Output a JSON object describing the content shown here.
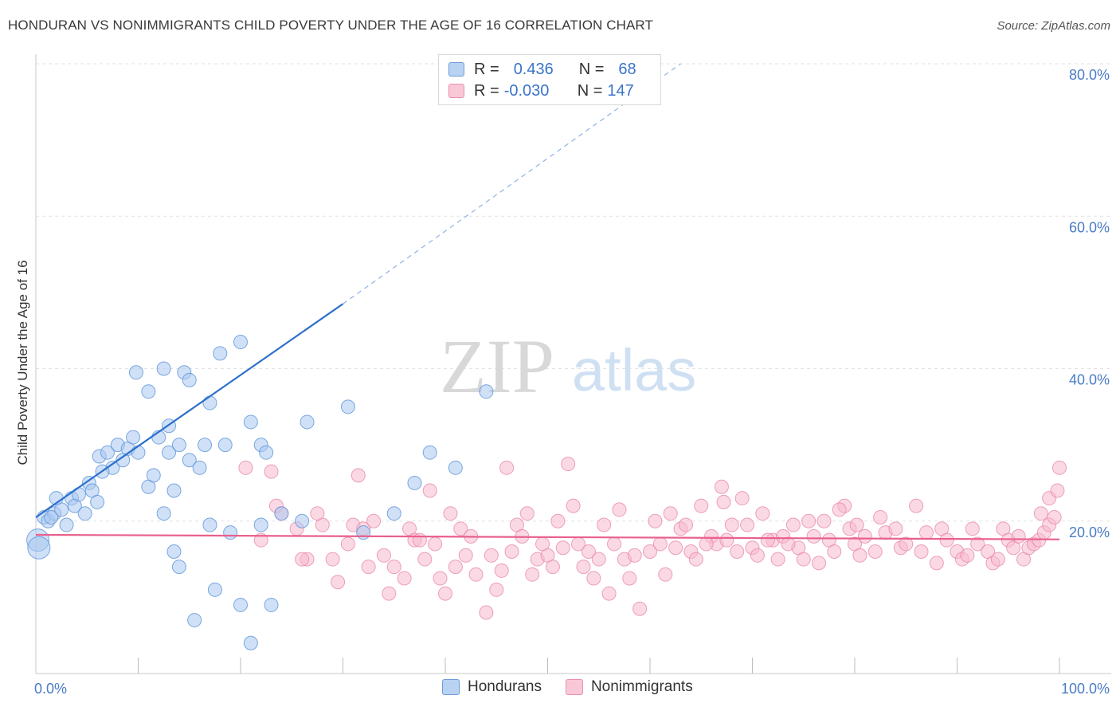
{
  "title": "HONDURAN VS NONIMMIGRANTS CHILD POVERTY UNDER THE AGE OF 16 CORRELATION CHART",
  "source": "Source: ZipAtlas.com",
  "watermark": {
    "zip": "ZIP",
    "atlas": "atlas"
  },
  "legend": {
    "series1": {
      "r_label": "R =",
      "r_value": "0.436",
      "n_label": "N =",
      "n_value": "68"
    },
    "series2": {
      "r_label": "R =",
      "r_value": "-0.030",
      "n_label": "N =",
      "n_value": "147"
    }
  },
  "colors": {
    "hondurans_fill": "#a9c8f0",
    "hondurans_stroke": "#5d93d9",
    "hondurans_line": "#2c6fcc",
    "nonimm_fill": "#f7b9cd",
    "nonimm_stroke": "#e889a9",
    "nonimm_line": "#e8608d",
    "tick_text": "#4a7cc7",
    "grid": "#e2e2e2"
  },
  "chart_data": {
    "type": "scatter",
    "ylabel": "Child Poverty Under the Age of 16",
    "xlim": [
      0,
      100
    ],
    "ylim": [
      0,
      80
    ],
    "x_tick_labels": [
      {
        "value": 0,
        "label": "0.0%"
      },
      {
        "value": 100,
        "label": "100.0%"
      }
    ],
    "y_tick_labels": [
      {
        "value": 20,
        "label": "20.0%"
      },
      {
        "value": 40,
        "label": "40.0%"
      },
      {
        "value": 60,
        "label": "60.0%"
      },
      {
        "value": 80,
        "label": "80.0%"
      }
    ],
    "grid": true,
    "legend_position": "top-center",
    "series": [
      {
        "name": "Hondurans",
        "trend": {
          "x": [
            0,
            30
          ],
          "y": [
            20.5,
            48.5
          ],
          "dashed_to": [
            63,
            80
          ]
        },
        "points": [
          [
            0.2,
            17.5
          ],
          [
            0.3,
            16.5
          ],
          [
            0.8,
            20.5
          ],
          [
            1.2,
            20
          ],
          [
            1.8,
            21
          ],
          [
            1.5,
            20.5
          ],
          [
            2.5,
            21.5
          ],
          [
            2,
            23
          ],
          [
            3,
            19.5
          ],
          [
            3.5,
            23
          ],
          [
            3.8,
            22
          ],
          [
            4.2,
            23.5
          ],
          [
            4.8,
            21
          ],
          [
            5.2,
            25
          ],
          [
            5.5,
            24
          ],
          [
            6,
            22.5
          ],
          [
            6.2,
            28.5
          ],
          [
            7,
            29
          ],
          [
            7.5,
            27
          ],
          [
            8,
            30
          ],
          [
            8.5,
            28
          ],
          [
            9,
            29.5
          ],
          [
            6.5,
            26.5
          ],
          [
            9.5,
            31
          ],
          [
            10,
            29
          ],
          [
            11,
            24.5
          ],
          [
            11.5,
            26
          ],
          [
            12,
            31
          ],
          [
            13,
            29
          ],
          [
            13.5,
            24
          ],
          [
            14,
            30
          ],
          [
            15,
            28
          ],
          [
            16,
            27
          ],
          [
            16.5,
            30
          ],
          [
            18.5,
            30
          ],
          [
            13,
            32.5
          ],
          [
            12.5,
            21
          ],
          [
            9.8,
            39.5
          ],
          [
            11,
            37
          ],
          [
            12.5,
            40
          ],
          [
            14.5,
            39.5
          ],
          [
            15,
            38.5
          ],
          [
            17,
            35.5
          ],
          [
            18,
            42
          ],
          [
            20,
            43.5
          ],
          [
            22,
            30
          ],
          [
            22.5,
            29
          ],
          [
            24,
            21
          ],
          [
            21,
            33
          ],
          [
            22,
            19.5
          ],
          [
            13.5,
            16
          ],
          [
            14,
            14
          ],
          [
            17,
            19.5
          ],
          [
            15.5,
            7
          ],
          [
            17.5,
            11
          ],
          [
            19,
            18.5
          ],
          [
            20,
            9
          ],
          [
            21,
            4
          ],
          [
            23,
            9
          ],
          [
            26,
            20
          ],
          [
            26.5,
            33
          ],
          [
            30.5,
            35
          ],
          [
            32,
            18.5
          ],
          [
            35,
            21
          ],
          [
            37,
            25
          ],
          [
            38.5,
            29
          ],
          [
            41,
            27
          ],
          [
            44,
            37
          ]
        ]
      },
      {
        "name": "Nonimmigrants",
        "trend": {
          "x": [
            0,
            100
          ],
          "y": [
            18.2,
            17.6
          ]
        },
        "points": [
          [
            20.5,
            27
          ],
          [
            22,
            17.5
          ],
          [
            23,
            26.5
          ],
          [
            23.5,
            22
          ],
          [
            24,
            21
          ],
          [
            25.5,
            19
          ],
          [
            26.5,
            15
          ],
          [
            28,
            19.5
          ],
          [
            29,
            15
          ],
          [
            30.5,
            17
          ],
          [
            31,
            19.5
          ],
          [
            31.5,
            26
          ],
          [
            32,
            19
          ],
          [
            33,
            20
          ],
          [
            34,
            15.5
          ],
          [
            35,
            14
          ],
          [
            36.5,
            19
          ],
          [
            37,
            17.5
          ],
          [
            38,
            15
          ],
          [
            38.5,
            24
          ],
          [
            39,
            17
          ],
          [
            40,
            10.5
          ],
          [
            40.5,
            21
          ],
          [
            41,
            14
          ],
          [
            42,
            15.5
          ],
          [
            43,
            13
          ],
          [
            44,
            8
          ],
          [
            45,
            11
          ],
          [
            46,
            27
          ],
          [
            47,
            19.5
          ],
          [
            48,
            21
          ],
          [
            49,
            15
          ],
          [
            50,
            15.5
          ],
          [
            51,
            20
          ],
          [
            52,
            27.5
          ],
          [
            52.5,
            22
          ],
          [
            53,
            17
          ],
          [
            54,
            16
          ],
          [
            55,
            15
          ],
          [
            55.5,
            19.5
          ],
          [
            56,
            10.5
          ],
          [
            57,
            21.5
          ],
          [
            58,
            12.5
          ],
          [
            59,
            8.5
          ],
          [
            60,
            16
          ],
          [
            60.5,
            20
          ],
          [
            61,
            17
          ],
          [
            62,
            21
          ],
          [
            63,
            19
          ],
          [
            64,
            16
          ],
          [
            65,
            22
          ],
          [
            66,
            18
          ],
          [
            66.5,
            17
          ],
          [
            67,
            24.5
          ],
          [
            67.5,
            17.5
          ],
          [
            68,
            19.5
          ],
          [
            68.5,
            16
          ],
          [
            69,
            23
          ],
          [
            70,
            16.5
          ],
          [
            71,
            21
          ],
          [
            72,
            17.5
          ],
          [
            72.5,
            15
          ],
          [
            73,
            18
          ],
          [
            74,
            19.5
          ],
          [
            74.5,
            16.5
          ],
          [
            75,
            15
          ],
          [
            76,
            18
          ],
          [
            77,
            20
          ],
          [
            77.5,
            17.5
          ],
          [
            78,
            16
          ],
          [
            79,
            22
          ],
          [
            79.5,
            19
          ],
          [
            80,
            17
          ],
          [
            80.5,
            15.5
          ],
          [
            81,
            18
          ],
          [
            82,
            16
          ],
          [
            82.5,
            20.5
          ],
          [
            83,
            18.5
          ],
          [
            84,
            19
          ],
          [
            84.5,
            16.5
          ],
          [
            85,
            17
          ],
          [
            86,
            22
          ],
          [
            86.5,
            16
          ],
          [
            87,
            18.5
          ],
          [
            88,
            14.5
          ],
          [
            88.5,
            19
          ],
          [
            89,
            17.5
          ],
          [
            90,
            16
          ],
          [
            90.5,
            15
          ],
          [
            91,
            15.5
          ],
          [
            91.5,
            19
          ],
          [
            92,
            17
          ],
          [
            93,
            16
          ],
          [
            93.5,
            14.5
          ],
          [
            94,
            15
          ],
          [
            94.5,
            19
          ],
          [
            95,
            17.5
          ],
          [
            95.5,
            16.5
          ],
          [
            96,
            18
          ],
          [
            96.5,
            15
          ],
          [
            97,
            16.5
          ],
          [
            97.5,
            17
          ],
          [
            98,
            17.5
          ],
          [
            98.5,
            18.5
          ],
          [
            99,
            19.5
          ],
          [
            99.5,
            20.5
          ],
          [
            99,
            23
          ],
          [
            100,
            27
          ],
          [
            99.8,
            24
          ],
          [
            98.2,
            21
          ],
          [
            26,
            15
          ],
          [
            27.5,
            21
          ],
          [
            29.5,
            12
          ],
          [
            32.5,
            14
          ],
          [
            34.5,
            10.5
          ],
          [
            36,
            12.5
          ],
          [
            37.5,
            17.5
          ],
          [
            39.5,
            12.5
          ],
          [
            41.5,
            19
          ],
          [
            42.5,
            18
          ],
          [
            44.5,
            15.5
          ],
          [
            45.5,
            13.5
          ],
          [
            46.5,
            16
          ],
          [
            47.5,
            18
          ],
          [
            48.5,
            13
          ],
          [
            49.5,
            17
          ],
          [
            50.5,
            14
          ],
          [
            51.5,
            16.5
          ],
          [
            53.5,
            14
          ],
          [
            54.5,
            12.5
          ],
          [
            56.5,
            17
          ],
          [
            57.5,
            15
          ],
          [
            58.5,
            15.5
          ],
          [
            61.5,
            13
          ],
          [
            62.5,
            16.5
          ],
          [
            63.5,
            19.5
          ],
          [
            64.5,
            15
          ],
          [
            65.5,
            17
          ],
          [
            67.2,
            22.5
          ],
          [
            69.5,
            19.5
          ],
          [
            70.5,
            15.5
          ],
          [
            71.5,
            17.5
          ],
          [
            73.5,
            17
          ],
          [
            75.5,
            20
          ],
          [
            76.5,
            14.5
          ],
          [
            78.5,
            21.5
          ],
          [
            80.2,
            19.5
          ]
        ]
      }
    ]
  }
}
